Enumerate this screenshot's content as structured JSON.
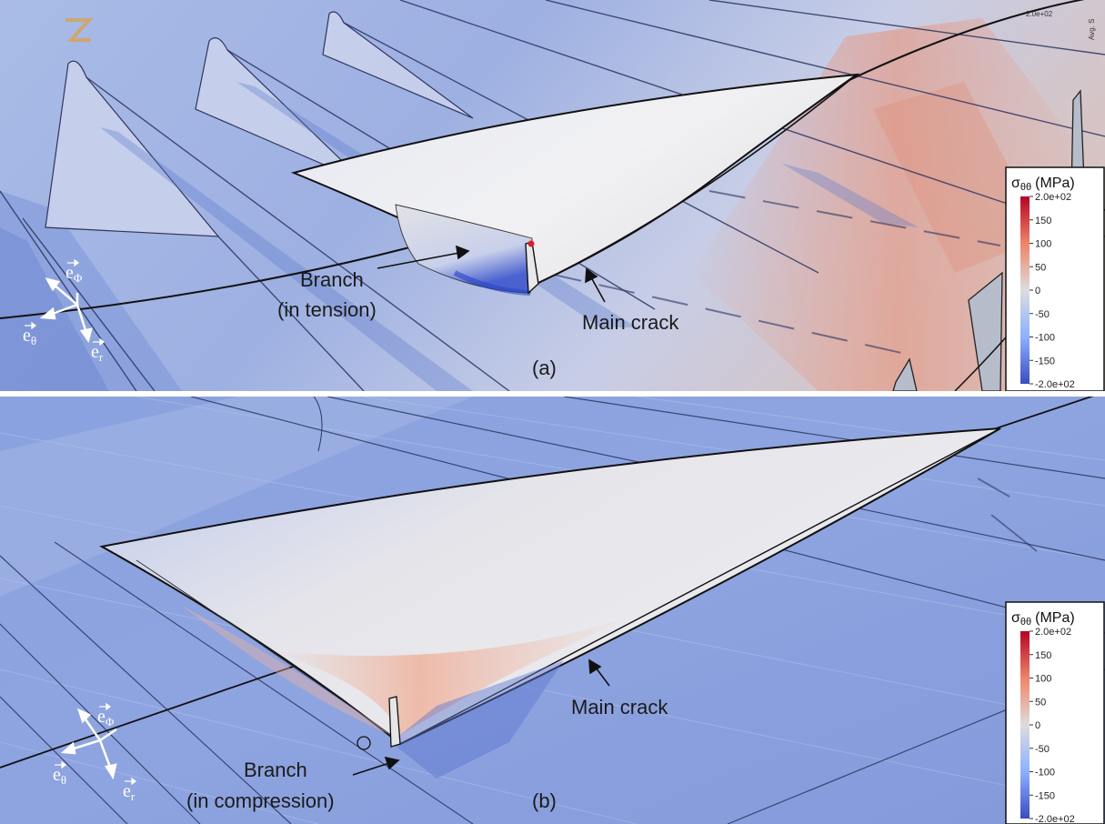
{
  "panel_a": {
    "label": "(a)",
    "branch_line1": "Branch",
    "branch_line2": "(in tension)",
    "main_crack": "Main crack",
    "corner_readout": "2.0e+02",
    "corner_side": "Avg. S",
    "axes": {
      "phi": "e",
      "phi_sub": "Φ",
      "theta": "e",
      "theta_sub": "θ",
      "r": "e",
      "r_sub": "r"
    }
  },
  "panel_b": {
    "label": "(b)",
    "branch_line1": "Branch",
    "branch_line2": "(in compression)",
    "main_crack": "Main crack",
    "axes": {
      "phi": "e",
      "phi_sub": "Φ",
      "theta": "e",
      "theta_sub": "θ",
      "r": "e",
      "r_sub": "r"
    }
  },
  "colorbar": {
    "title_symbol": "σ",
    "title_sub": "θθ",
    "title_unit": "(MPa)",
    "ticks": [
      "2.0e+02",
      "150",
      "100",
      "50",
      "0",
      "-50",
      "-100",
      "-150",
      "-2.0e+02"
    ],
    "color_max": "#b40426",
    "color_mid": "#dddddd",
    "color_min": "#3b4cc0"
  }
}
